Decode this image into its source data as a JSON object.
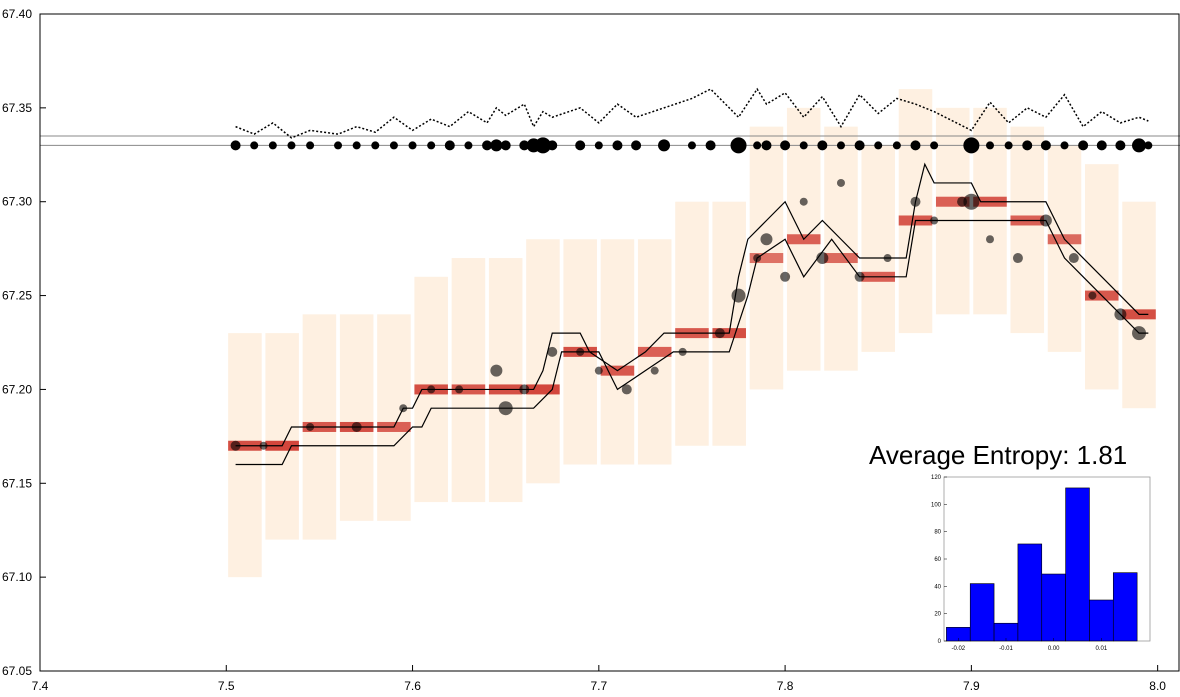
{
  "chart_data": {
    "type": "orderbook",
    "xlim": [
      7.4,
      8.012
    ],
    "ylim": [
      67.05,
      67.4
    ],
    "xticks": [
      7.4,
      7.5,
      7.6,
      7.7,
      7.8,
      7.9,
      {
        "value": 8.0,
        "label": "8.0"
      }
    ],
    "yticks": [
      {
        "value": 67.4,
        "label": "67.40"
      },
      67.35,
      {
        "value": 67.3,
        "label": "67.30"
      },
      67.25,
      {
        "value": 67.2,
        "label": "67.20"
      },
      67.15,
      {
        "value": 67.1,
        "label": "67.10"
      },
      67.05
    ],
    "hlines": [
      67.335,
      67.33
    ],
    "annotation": "Average Entropy: 1.81",
    "heatmap": {
      "x": [
        7.51,
        7.53,
        7.55,
        7.57,
        7.59,
        7.61,
        7.63,
        7.65,
        7.67,
        7.69,
        7.71,
        7.73,
        7.75,
        7.77,
        7.79,
        7.81,
        7.83,
        7.85,
        7.87,
        7.89,
        7.91,
        7.93,
        7.95,
        7.97,
        7.99
      ],
      "values": [
        67.17,
        67.17,
        67.18,
        67.18,
        67.18,
        67.2,
        67.2,
        67.2,
        67.2,
        67.22,
        67.21,
        67.22,
        67.23,
        67.23,
        67.27,
        67.28,
        67.27,
        67.26,
        67.29,
        67.3,
        67.3,
        67.29,
        67.28,
        67.25,
        67.24
      ],
      "intensity": [
        0.9,
        0.95,
        0.85,
        0.9,
        0.8,
        0.9,
        0.85,
        0.9,
        0.95,
        0.9,
        0.85,
        0.8,
        0.85,
        0.9,
        0.7,
        0.8,
        0.75,
        0.8,
        0.85,
        0.8,
        0.85,
        0.8,
        0.75,
        0.85,
        0.9
      ],
      "low": [
        67.1,
        67.12,
        67.12,
        67.13,
        67.13,
        67.14,
        67.14,
        67.14,
        67.15,
        67.16,
        67.16,
        67.16,
        67.17,
        67.17,
        67.2,
        67.21,
        67.21,
        67.22,
        67.23,
        67.24,
        67.24,
        67.23,
        67.22,
        67.2,
        67.19
      ],
      "high": [
        67.23,
        67.23,
        67.24,
        67.24,
        67.24,
        67.26,
        67.27,
        67.27,
        67.28,
        67.28,
        67.28,
        67.28,
        67.3,
        67.3,
        67.34,
        67.35,
        67.34,
        67.33,
        67.36,
        67.35,
        67.35,
        67.34,
        67.33,
        67.32,
        67.3
      ]
    },
    "series": [
      {
        "name": "ask",
        "color": "#000000",
        "x": [
          7.505,
          7.53,
          7.535,
          7.59,
          7.595,
          7.6,
          7.605,
          7.665,
          7.67,
          7.675,
          7.69,
          7.695,
          7.71,
          7.725,
          7.735,
          7.77,
          7.775,
          7.78,
          7.79,
          7.8,
          7.81,
          7.82,
          7.83,
          7.84,
          7.865,
          7.87,
          7.875,
          7.88,
          7.9,
          7.905,
          7.94,
          7.95,
          7.96,
          7.97,
          7.98,
          7.99,
          7.995
        ],
        "values": [
          67.17,
          67.17,
          67.18,
          67.18,
          67.19,
          67.19,
          67.2,
          67.2,
          67.21,
          67.23,
          67.23,
          67.22,
          67.21,
          67.22,
          67.23,
          67.23,
          67.26,
          67.28,
          67.29,
          67.3,
          67.28,
          67.29,
          67.28,
          67.27,
          67.27,
          67.3,
          67.32,
          67.31,
          67.31,
          67.3,
          67.3,
          67.28,
          67.27,
          67.26,
          67.25,
          67.24,
          67.24
        ]
      },
      {
        "name": "bid",
        "color": "#000000",
        "x": [
          7.505,
          7.53,
          7.535,
          7.59,
          7.6,
          7.605,
          7.61,
          7.665,
          7.675,
          7.68,
          7.7,
          7.71,
          7.725,
          7.74,
          7.77,
          7.78,
          7.785,
          7.8,
          7.81,
          7.825,
          7.84,
          7.865,
          7.87,
          7.88,
          7.9,
          7.905,
          7.94,
          7.95,
          7.96,
          7.97,
          7.98,
          7.99,
          7.995
        ],
        "values": [
          67.16,
          67.16,
          67.17,
          67.17,
          67.18,
          67.18,
          67.19,
          67.19,
          67.2,
          67.22,
          67.22,
          67.2,
          67.21,
          67.22,
          67.22,
          67.25,
          67.27,
          67.28,
          67.26,
          67.28,
          67.26,
          67.26,
          67.29,
          67.29,
          67.29,
          67.29,
          67.29,
          67.27,
          67.26,
          67.25,
          67.24,
          67.23,
          67.23
        ]
      }
    ],
    "scatter": {
      "x": [
        7.505,
        7.52,
        7.545,
        7.57,
        7.595,
        7.61,
        7.625,
        7.645,
        7.65,
        7.66,
        7.675,
        7.69,
        7.7,
        7.715,
        7.73,
        7.745,
        7.765,
        7.775,
        7.785,
        7.79,
        7.8,
        7.81,
        7.82,
        7.83,
        7.84,
        7.855,
        7.87,
        7.88,
        7.895,
        7.9,
        7.91,
        7.925,
        7.94,
        7.955,
        7.965,
        7.98,
        7.99
      ],
      "values": [
        67.17,
        67.17,
        67.18,
        67.18,
        67.19,
        67.2,
        67.2,
        67.21,
        67.19,
        67.2,
        67.22,
        67.22,
        67.21,
        67.2,
        67.21,
        67.22,
        67.23,
        67.25,
        67.27,
        67.28,
        67.26,
        67.3,
        67.27,
        67.31,
        67.26,
        67.27,
        67.3,
        67.29,
        67.3,
        67.3,
        67.28,
        67.27,
        67.29,
        67.27,
        67.25,
        67.24,
        67.23
      ],
      "sizes": [
        5,
        4,
        4,
        5,
        4,
        4,
        4,
        6,
        7,
        5,
        5,
        4,
        4,
        5,
        4,
        4,
        5,
        7,
        4,
        6,
        5,
        4,
        6,
        4,
        5,
        4,
        5,
        4,
        5,
        8,
        4,
        5,
        6,
        5,
        4,
        6,
        7
      ]
    },
    "trades": {
      "x": [
        7.505,
        7.515,
        7.525,
        7.535,
        7.545,
        7.56,
        7.57,
        7.58,
        7.59,
        7.6,
        7.61,
        7.62,
        7.63,
        7.64,
        7.645,
        7.65,
        7.66,
        7.665,
        7.67,
        7.675,
        7.69,
        7.7,
        7.71,
        7.72,
        7.735,
        7.75,
        7.76,
        7.775,
        7.785,
        7.79,
        7.8,
        7.81,
        7.82,
        7.83,
        7.84,
        7.85,
        7.86,
        7.87,
        7.88,
        7.9,
        7.91,
        7.92,
        7.93,
        7.94,
        7.95,
        7.96,
        7.97,
        7.98,
        7.99,
        7.995
      ],
      "values": [
        67.33,
        67.33,
        67.33,
        67.33,
        67.33,
        67.33,
        67.33,
        67.33,
        67.33,
        67.33,
        67.33,
        67.33,
        67.33,
        67.33,
        67.33,
        67.33,
        67.33,
        67.33,
        67.33,
        67.33,
        67.33,
        67.33,
        67.33,
        67.33,
        67.33,
        67.33,
        67.33,
        67.33,
        67.33,
        67.33,
        67.33,
        67.33,
        67.33,
        67.33,
        67.33,
        67.33,
        67.33,
        67.33,
        67.33,
        67.33,
        67.33,
        67.33,
        67.33,
        67.33,
        67.33,
        67.33,
        67.33,
        67.33,
        67.33,
        67.33
      ],
      "sizes": [
        5,
        4,
        4,
        4,
        4,
        4,
        4,
        4,
        4,
        4,
        4,
        5,
        4,
        5,
        6,
        5,
        5,
        7,
        8,
        5,
        5,
        4,
        5,
        5,
        6,
        4,
        5,
        8,
        4,
        5,
        5,
        4,
        5,
        4,
        5,
        4,
        4,
        5,
        4,
        8,
        4,
        4,
        5,
        5,
        4,
        5,
        5,
        5,
        7,
        4
      ],
      "volume": [
        67.34,
        67.336,
        67.342,
        67.334,
        67.338,
        67.336,
        67.34,
        67.337,
        67.345,
        67.338,
        67.344,
        67.34,
        67.348,
        67.342,
        67.35,
        67.346,
        67.352,
        67.34,
        67.348,
        67.345,
        67.35,
        67.342,
        67.352,
        67.345,
        67.35,
        67.355,
        67.36,
        67.345,
        67.36,
        67.352,
        67.358,
        67.345,
        67.356,
        67.34,
        67.357,
        67.347,
        67.355,
        67.352,
        67.348,
        67.338,
        67.353,
        67.342,
        67.35,
        67.345,
        67.357,
        67.34,
        67.348,
        67.342,
        67.345,
        67.343
      ]
    },
    "inset": {
      "type": "histogram",
      "bins": [
        -0.0225,
        -0.0175,
        -0.0125,
        -0.0075,
        -0.0025,
        0.0025,
        0.0075,
        0.0125,
        0.0175
      ],
      "values": [
        10,
        42,
        13,
        71,
        49,
        112,
        30,
        50
      ],
      "color": "#0000ff",
      "xlim": [
        -0.023,
        0.0202
      ],
      "ylim": [
        0,
        120
      ],
      "xticks": [
        -0.02,
        -0.01,
        {
          "value": 0,
          "label": "0.00"
        },
        0.01
      ],
      "yticks": [
        0,
        20,
        40,
        60,
        80,
        100,
        120
      ]
    }
  }
}
